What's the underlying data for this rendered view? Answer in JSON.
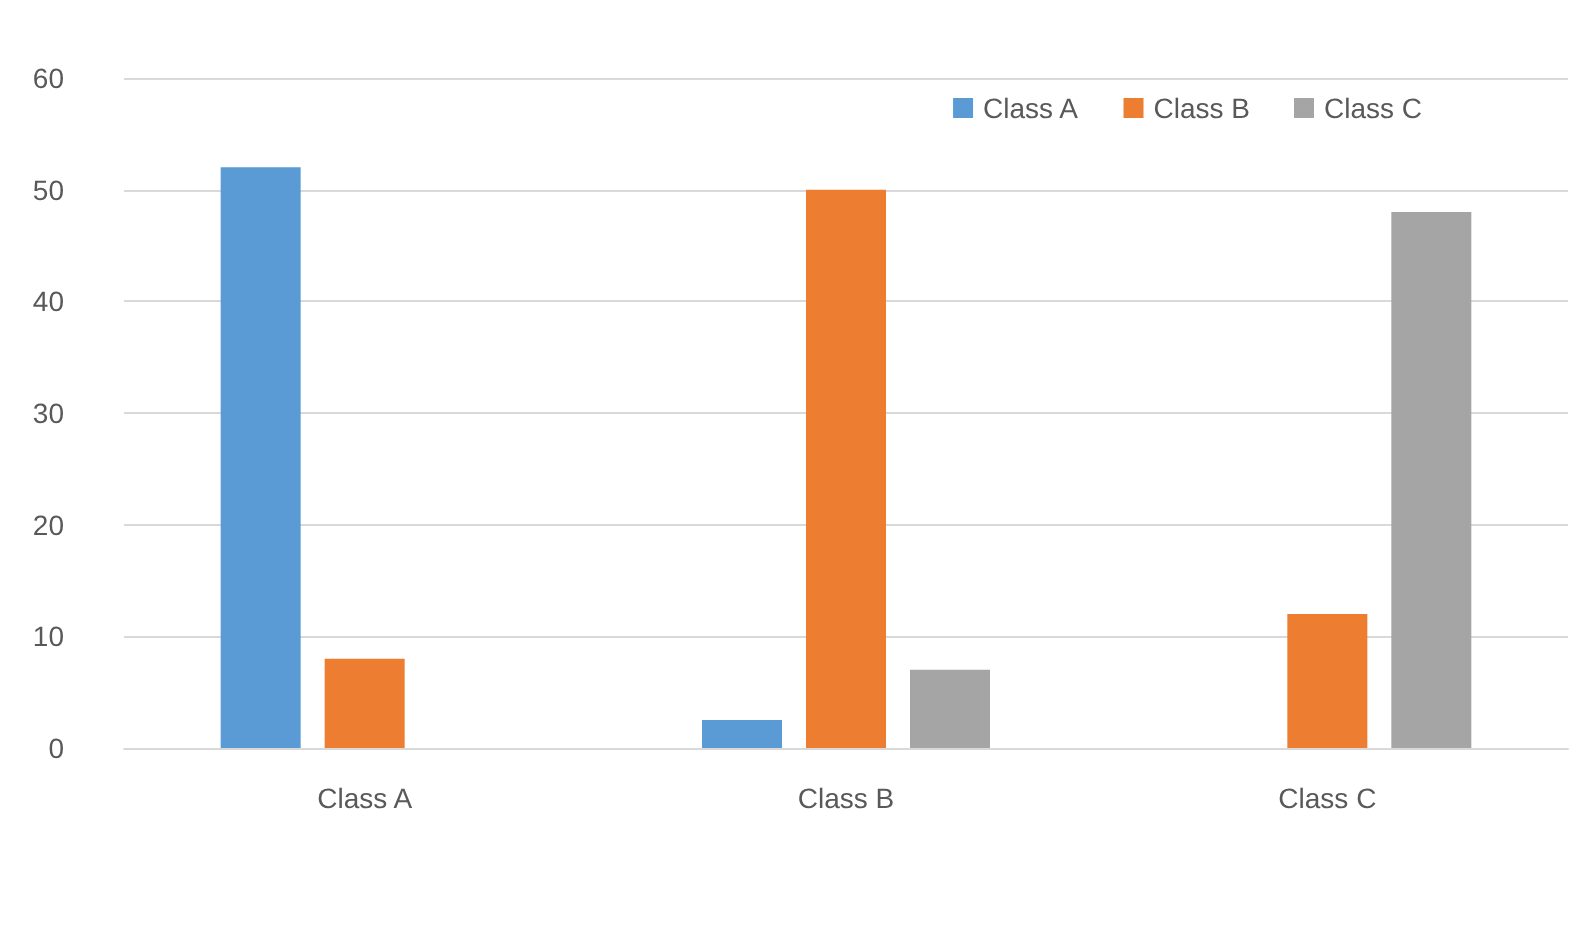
{
  "chart_data": {
    "type": "bar",
    "categories": [
      "Class A",
      "Class B",
      "Class C"
    ],
    "series": [
      {
        "name": "Class A",
        "color": "#5b9bd5",
        "values": [
          52,
          2.5,
          0
        ]
      },
      {
        "name": "Class B",
        "color": "#ed7d31",
        "values": [
          8,
          50,
          12
        ]
      },
      {
        "name": "Class C",
        "color": "#a5a5a5",
        "values": [
          0,
          7,
          48
        ]
      }
    ],
    "ylim": [
      0,
      60
    ],
    "yticks": [
      0,
      10,
      20,
      30,
      40,
      50,
      60
    ],
    "grid": "y",
    "legend": "top right"
  }
}
